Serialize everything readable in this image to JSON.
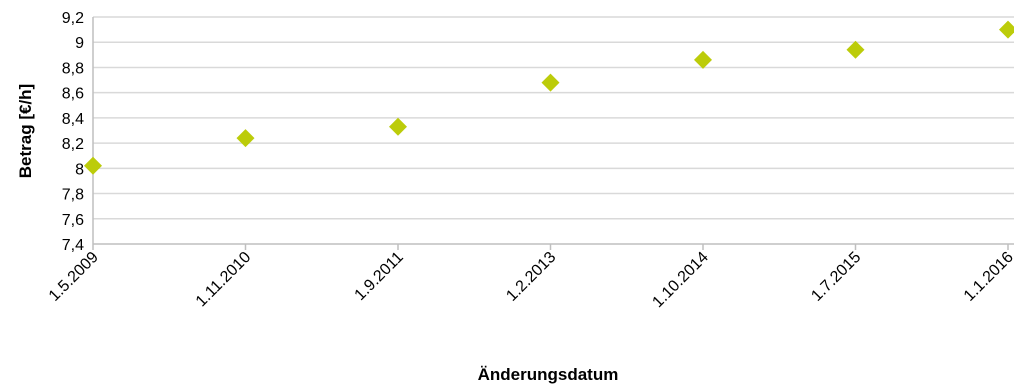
{
  "chart_data": {
    "type": "scatter",
    "title": "",
    "xlabel": "Änderungsdatum",
    "ylabel": "Betrag [€/h]",
    "categories": [
      "1.5.2009",
      "1.11.2010",
      "1.9.2011",
      "1.2.2013",
      "1.10.2014",
      "1.7.2015",
      "1.1.2016"
    ],
    "values": [
      8.02,
      8.24,
      8.33,
      8.68,
      8.86,
      8.94,
      9.1
    ],
    "ylim": [
      7.4,
      9.2
    ],
    "yticks": [
      "7,4",
      "7,6",
      "7,8",
      "8",
      "8,2",
      "8,4",
      "8,6",
      "8,8",
      "9",
      "9,2"
    ],
    "grid": true,
    "legend": "none",
    "marker": "diamond",
    "colors": {
      "marker": "#bccc0a",
      "grid": "#d9d9d9",
      "axis": "#bfbfbf"
    }
  }
}
